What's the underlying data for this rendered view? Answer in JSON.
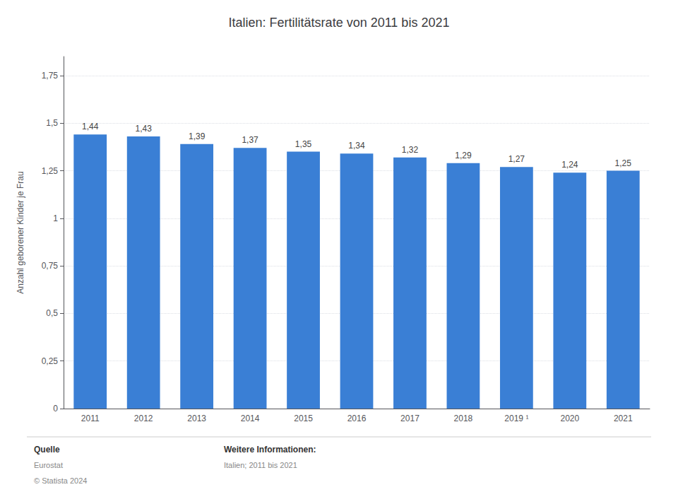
{
  "chart_data": {
    "type": "bar",
    "title": "Italien: Fertilitätsrate von 2011 bis 2021",
    "categories": [
      "2011",
      "2012",
      "2013",
      "2014",
      "2015",
      "2016",
      "2017",
      "2018",
      "2019 ¹",
      "2020",
      "2021"
    ],
    "values": [
      1.44,
      1.43,
      1.39,
      1.37,
      1.35,
      1.34,
      1.32,
      1.29,
      1.27,
      1.24,
      1.25
    ],
    "value_labels": [
      "1,44",
      "1,43",
      "1,39",
      "1,37",
      "1,35",
      "1,34",
      "1,32",
      "1,29",
      "1,27",
      "1,24",
      "1,25"
    ],
    "data_labels": true,
    "color": "#3a7fd5",
    "ylabel": "Anzahl geborener Kinder je Frau",
    "ylim": [
      0,
      1.85
    ],
    "yticks": [
      0,
      {
        "value": 0.25,
        "label": "0,25"
      },
      {
        "value": 0.5,
        "label": "0,5"
      },
      {
        "value": 0.75,
        "label": "0,75"
      },
      1,
      {
        "value": 1.25,
        "label": "1,25"
      },
      {
        "value": 1.5,
        "label": "1,5"
      },
      {
        "value": 1.75,
        "label": "1,75"
      }
    ],
    "grid": true,
    "annotations": [
      "Quelle",
      "Eurostat",
      "© Statista 2024",
      "Weitere Informationen:",
      "Italien; 2011 bis 2021"
    ]
  }
}
